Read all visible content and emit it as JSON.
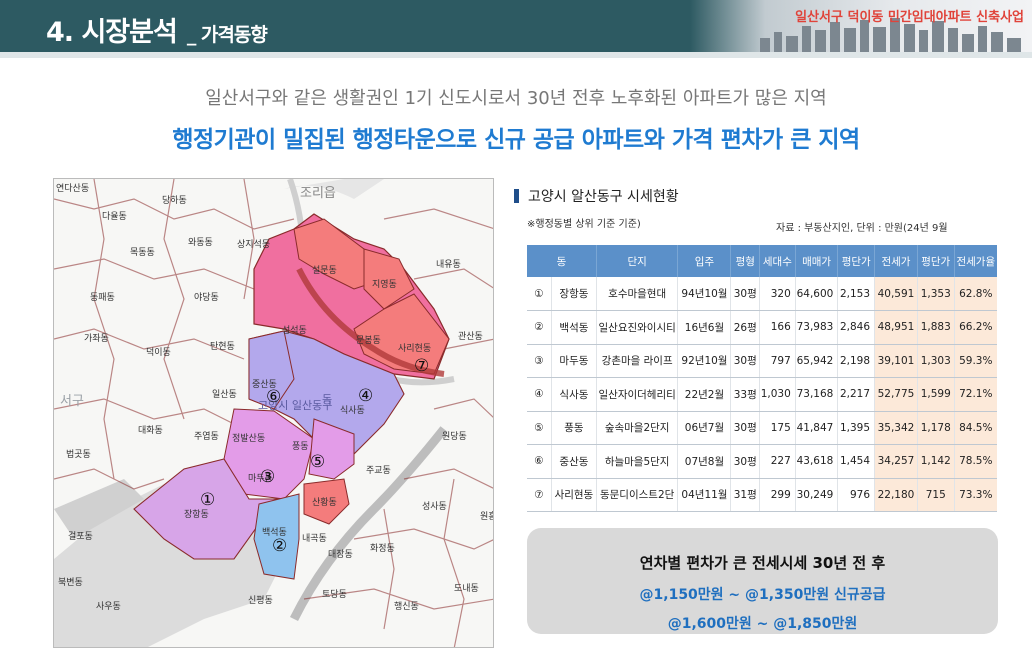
{
  "header": {
    "title": "4. 시장분석",
    "subtitle": "_ 가격동향",
    "project": "일산서구 덕이동 민간임대아파트 신축사업"
  },
  "intro": {
    "line1": "일산서구와 같은 생활권인 1기 신도시로서 30년 전후 노후화된 아파트가 많은 지역",
    "line2": "행정기관이 밀집된 행정타운으로 신규 공급 아파트와 가격 편차가 큰 지역"
  },
  "map": {
    "labels": [
      "연다산동",
      "다율동",
      "당하동",
      "조리읍",
      "목동동",
      "와동동",
      "상지석동",
      "동패동",
      "야당동",
      "내유동",
      "설문동",
      "지영동",
      "관산동",
      "성석동",
      "문봉동",
      "사리현동",
      "가좌동",
      "덕이동",
      "탄현동",
      "일산동",
      "중산동",
      "식사동",
      "고양시 일산동구",
      "대화동",
      "주엽동",
      "정발산동",
      "풍동",
      "원당동",
      "법곳동",
      "마두동",
      "주교동",
      "장항동",
      "산황동",
      "성사동",
      "원흥",
      "백석동",
      "내곡동",
      "대장동",
      "화정동",
      "걸포동",
      "북변동",
      "사우동",
      "신평동",
      "토당동",
      "행신동",
      "도내동",
      "서구",
      "동"
    ],
    "markers": [
      "①",
      "②",
      "③",
      "④",
      "⑤",
      "⑥",
      "⑦"
    ]
  },
  "panel": {
    "title": "고양시 알산동구 시세현황",
    "note_left": "※행정동별 상위 기준 기준)",
    "note_right": "자료 : 부동산지인, 단위 : 만원(24년  9월"
  },
  "table": {
    "headers": [
      "동",
      "단지",
      "입주",
      "평형",
      "세대수",
      "매매가",
      "평단가",
      "전세가",
      "평단가",
      "전세가율"
    ],
    "rows": [
      [
        "①",
        "장항동",
        "호수마을현대",
        "94년10월",
        "30평",
        "320",
        "64,600",
        "2,153",
        "40,591",
        "1,353",
        "62.8%"
      ],
      [
        "②",
        "백석동",
        "일산요진와이시티",
        "16년6월",
        "26평",
        "166",
        "73,983",
        "2,846",
        "48,951",
        "1,883",
        "66.2%"
      ],
      [
        "③",
        "마두동",
        "강촌마을 라이프",
        "92년10월",
        "30평",
        "797",
        "65,942",
        "2,198",
        "39,101",
        "1,303",
        "59.3%"
      ],
      [
        "④",
        "식사동",
        "일산자이더헤리티",
        "22년2월",
        "33평",
        "1,030",
        "73,168",
        "2,217",
        "52,775",
        "1,599",
        "72.1%"
      ],
      [
        "⑤",
        "풍동",
        "숲속마을2단지",
        "06년7월",
        "30평",
        "175",
        "41,847",
        "1,395",
        "35,342",
        "1,178",
        "84.5%"
      ],
      [
        "⑥",
        "중산동",
        "하늘마을5단지",
        "07년8월",
        "30평",
        "227",
        "43,618",
        "1,454",
        "34,257",
        "1,142",
        "78.5%"
      ],
      [
        "⑦",
        "사리현동",
        "동문디이스트2단",
        "04년11월",
        "31평",
        "299",
        "30,249",
        "976",
        "22,180",
        "715",
        "73.3%"
      ]
    ]
  },
  "summary": {
    "line1": "연차별 편차가 큰 전세시세   30년 전  후",
    "line2": "@1,150만원 ~ @1,350만원 신규공급",
    "line3": "@1,600만원 ~ @1,850만원"
  },
  "colors": {
    "header_band": "#2d5a62",
    "accent_blue": "#1f7bd1",
    "project_red": "#e0433a",
    "table_header": "#5b90c9",
    "highlight": "#fce9d9"
  }
}
